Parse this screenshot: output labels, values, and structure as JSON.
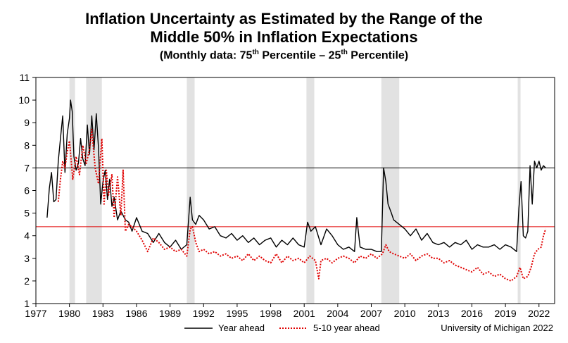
{
  "chart_data": {
    "type": "line",
    "title_line1": "Inflation Uncertainty as Estimated by the Range of the",
    "title_line2": "Middle 50% in Inflation Expectations",
    "subtitle_prefix": "(Monthly data:  75",
    "subtitle_sup1": "th",
    "subtitle_mid": " Percentile – 25",
    "subtitle_sup2": "th",
    "subtitle_suffix": " Percentile)",
    "source": "University of Michigan 2022",
    "xlim": [
      1977,
      2023.4
    ],
    "ylim": [
      1,
      11
    ],
    "x_ticks": [
      1977,
      1980,
      1983,
      1986,
      1989,
      1992,
      1995,
      1998,
      2001,
      2004,
      2007,
      2010,
      2013,
      2016,
      2019,
      2022
    ],
    "y_ticks": [
      1,
      2,
      3,
      4,
      5,
      6,
      7,
      8,
      9,
      10,
      11
    ],
    "grid": false,
    "legend_position": "bottom",
    "recessions": [
      [
        1980.0,
        1980.5
      ],
      [
        1981.5,
        1982.9
      ],
      [
        1990.5,
        1991.2
      ],
      [
        2001.2,
        2001.9
      ],
      [
        2007.9,
        2009.5
      ],
      [
        2020.1,
        2020.35
      ]
    ],
    "reference_lines": [
      {
        "value": 7.0,
        "color": "#000000"
      },
      {
        "value": 4.4,
        "color": "#e00000"
      }
    ],
    "series": [
      {
        "name": "Year ahead",
        "color": "#000000",
        "style": "solid",
        "x": [
          1978.0,
          1978.2,
          1978.4,
          1978.6,
          1978.8,
          1979.0,
          1979.2,
          1979.4,
          1979.6,
          1979.8,
          1980.0,
          1980.1,
          1980.25,
          1980.4,
          1980.6,
          1980.8,
          1981.0,
          1981.2,
          1981.4,
          1981.6,
          1981.8,
          1982.0,
          1982.2,
          1982.4,
          1982.6,
          1982.8,
          1983.0,
          1983.2,
          1983.4,
          1983.6,
          1983.8,
          1984.0,
          1984.3,
          1984.6,
          1985.0,
          1985.3,
          1985.6,
          1986.0,
          1986.5,
          1987.0,
          1987.5,
          1988.0,
          1988.5,
          1989.0,
          1989.5,
          1990.0,
          1990.5,
          1990.8,
          1991.0,
          1991.3,
          1991.6,
          1992.0,
          1992.5,
          1993.0,
          1993.5,
          1994.0,
          1994.5,
          1995.0,
          1995.5,
          1996.0,
          1996.5,
          1997.0,
          1997.5,
          1998.0,
          1998.5,
          1999.0,
          1999.5,
          2000.0,
          2000.5,
          2001.0,
          2001.3,
          2001.6,
          2002.0,
          2002.5,
          2003.0,
          2003.5,
          2004.0,
          2004.5,
          2005.0,
          2005.5,
          2005.7,
          2006.0,
          2006.5,
          2007.0,
          2007.5,
          2007.9,
          2008.1,
          2008.3,
          2008.5,
          2008.8,
          2009.0,
          2009.5,
          2010.0,
          2010.5,
          2011.0,
          2011.5,
          2012.0,
          2012.5,
          2013.0,
          2013.5,
          2014.0,
          2014.5,
          2015.0,
          2015.5,
          2016.0,
          2016.5,
          2017.0,
          2017.5,
          2018.0,
          2018.5,
          2019.0,
          2019.5,
          2020.0,
          2020.2,
          2020.4,
          2020.6,
          2020.8,
          2021.0,
          2021.2,
          2021.4,
          2021.6,
          2021.8,
          2022.0,
          2022.2,
          2022.4,
          2022.6
        ],
        "values": [
          4.8,
          6.1,
          6.8,
          5.5,
          5.6,
          7.3,
          8.3,
          9.3,
          6.8,
          8.5,
          9.2,
          10.0,
          9.5,
          7.5,
          6.9,
          7.2,
          8.3,
          7.4,
          7.1,
          8.9,
          7.6,
          9.3,
          7.8,
          9.4,
          7.9,
          5.4,
          6.4,
          6.9,
          5.6,
          6.5,
          5.3,
          5.7,
          4.7,
          5.1,
          4.7,
          4.6,
          4.2,
          4.8,
          4.2,
          4.1,
          3.7,
          4.1,
          3.7,
          3.5,
          3.8,
          3.4,
          3.6,
          5.7,
          4.7,
          4.5,
          4.9,
          4.7,
          4.3,
          4.4,
          4.0,
          3.9,
          4.1,
          3.8,
          4.0,
          3.7,
          3.9,
          3.6,
          3.8,
          3.9,
          3.5,
          3.8,
          3.6,
          3.9,
          3.6,
          3.5,
          4.6,
          4.2,
          4.4,
          3.6,
          4.3,
          4.0,
          3.6,
          3.4,
          3.5,
          3.3,
          4.8,
          3.5,
          3.4,
          3.4,
          3.3,
          3.3,
          7.0,
          6.4,
          5.4,
          5.0,
          4.7,
          4.5,
          4.3,
          4.0,
          4.3,
          3.8,
          4.1,
          3.7,
          3.6,
          3.7,
          3.5,
          3.7,
          3.6,
          3.8,
          3.4,
          3.6,
          3.5,
          3.5,
          3.6,
          3.4,
          3.6,
          3.5,
          3.3,
          5.2,
          6.4,
          4.0,
          3.9,
          4.2,
          7.1,
          5.4,
          7.3,
          7.0,
          7.3,
          6.9,
          7.1,
          7.0
        ]
      },
      {
        "name": "5-10 year ahead",
        "color": "#e00000",
        "style": "dotted",
        "x": [
          1979.0,
          1979.2,
          1979.4,
          1979.6,
          1979.8,
          1980.0,
          1980.3,
          1980.6,
          1980.9,
          1981.2,
          1981.5,
          1981.8,
          1982.0,
          1982.3,
          1982.6,
          1982.9,
          1983.1,
          1983.3,
          1983.5,
          1983.8,
          1984.0,
          1984.3,
          1984.6,
          1984.8,
          1985.0,
          1985.3,
          1985.6,
          1986.0,
          1986.5,
          1987.0,
          1987.5,
          1988.0,
          1988.5,
          1989.0,
          1989.5,
          1990.0,
          1990.5,
          1990.8,
          1991.0,
          1991.3,
          1991.6,
          1992.0,
          1992.5,
          1993.0,
          1993.5,
          1994.0,
          1994.5,
          1995.0,
          1995.5,
          1996.0,
          1996.5,
          1997.0,
          1997.5,
          1998.0,
          1998.5,
          1999.0,
          1999.5,
          2000.0,
          2000.5,
          2001.0,
          2001.5,
          2002.0,
          2002.3,
          2002.5,
          2003.0,
          2003.5,
          2004.0,
          2004.5,
          2005.0,
          2005.5,
          2006.0,
          2006.5,
          2007.0,
          2007.5,
          2008.0,
          2008.3,
          2008.6,
          2009.0,
          2009.5,
          2010.0,
          2010.5,
          2011.0,
          2011.5,
          2012.0,
          2012.5,
          2013.0,
          2013.5,
          2014.0,
          2014.5,
          2015.0,
          2015.5,
          2016.0,
          2016.5,
          2017.0,
          2017.5,
          2018.0,
          2018.5,
          2019.0,
          2019.5,
          2020.0,
          2020.3,
          2020.6,
          2021.0,
          2021.3,
          2021.6,
          2021.9,
          2022.2,
          2022.4,
          2022.6
        ],
        "values": [
          5.5,
          6.5,
          7.3,
          7.0,
          7.7,
          8.2,
          6.5,
          7.5,
          6.7,
          8.0,
          7.2,
          7.8,
          8.7,
          7.0,
          6.3,
          8.3,
          5.4,
          6.9,
          5.8,
          6.7,
          4.8,
          6.6,
          4.9,
          6.9,
          4.2,
          4.5,
          4.4,
          4.2,
          3.8,
          3.3,
          3.9,
          3.7,
          3.4,
          3.5,
          3.3,
          3.4,
          3.1,
          4.3,
          4.4,
          3.7,
          3.3,
          3.4,
          3.2,
          3.3,
          3.1,
          3.2,
          3.0,
          3.1,
          2.9,
          3.2,
          2.9,
          3.1,
          2.9,
          2.8,
          3.2,
          2.8,
          3.1,
          2.9,
          3.0,
          2.8,
          3.1,
          2.9,
          2.1,
          2.9,
          3.0,
          2.8,
          3.0,
          3.1,
          3.0,
          2.8,
          3.1,
          3.0,
          3.2,
          3.0,
          3.2,
          3.6,
          3.3,
          3.2,
          3.1,
          3.0,
          3.2,
          2.9,
          3.1,
          3.2,
          3.0,
          3.0,
          2.8,
          2.9,
          2.7,
          2.6,
          2.5,
          2.4,
          2.6,
          2.3,
          2.4,
          2.2,
          2.3,
          2.1,
          2.0,
          2.2,
          2.6,
          2.1,
          2.2,
          2.6,
          3.2,
          3.4,
          3.5,
          4.0,
          4.3
        ]
      }
    ]
  }
}
